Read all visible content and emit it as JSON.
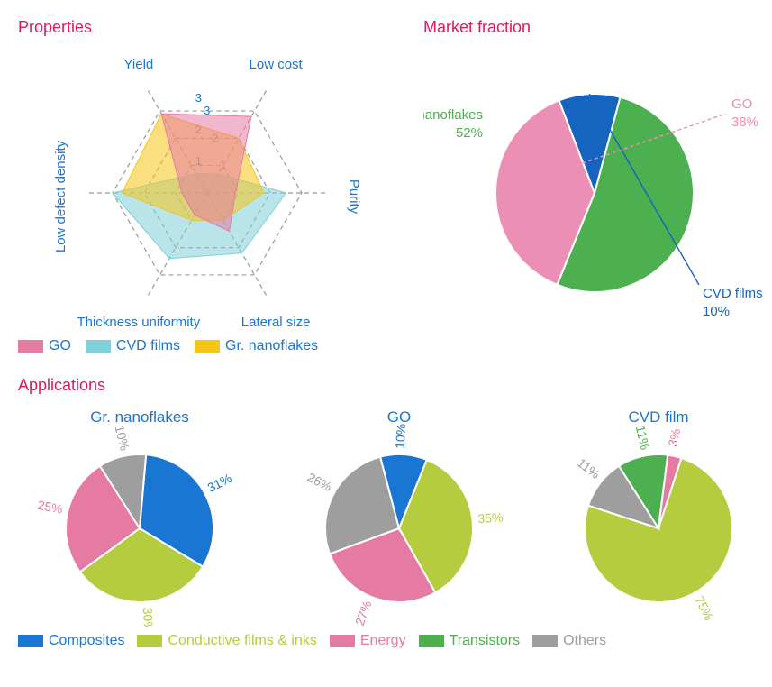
{
  "colors": {
    "title": "#d81b60",
    "axis_text": "#1976d2",
    "grid": "#999999",
    "go": "#e57ba3",
    "go_fill": "rgba(229,123,163,0.55)",
    "cvd": "#7fd0d8",
    "cvd_fill": "rgba(127,208,216,0.55)",
    "nano": "#f5c518",
    "nano_fill": "rgba(245,197,24,0.55)",
    "composites": "#1976d2",
    "conductive": "#b5cc3e",
    "energy": "#e57ba3",
    "transistors": "#4caf50",
    "others": "#9e9e9e",
    "pie_green": "#4caf50",
    "pie_pink": "#ec8fb5",
    "pie_blue": "#1565c0"
  },
  "radar": {
    "title": "Properties",
    "axes": [
      "Yield",
      "Low cost",
      "Purity",
      "Lateral size",
      "Thickness uniformity",
      "Low defect density"
    ],
    "max": 3,
    "ticks": [
      1,
      2,
      3
    ],
    "series": [
      {
        "name": "GO",
        "color_key": "go",
        "values": [
          2.9,
          2.8,
          0.9,
          1.4,
          0.8,
          0.8
        ]
      },
      {
        "name": "CVD films",
        "color_key": "cvd",
        "values": [
          0.7,
          0.7,
          2.5,
          2.2,
          2.4,
          3.0
        ]
      },
      {
        "name": "Gr. nanoflakes",
        "color_key": "nano",
        "values": [
          2.9,
          2.0,
          1.8,
          1.0,
          1.0,
          2.7
        ]
      }
    ],
    "legend": [
      {
        "label": "GO",
        "color_key": "go"
      },
      {
        "label": "CVD films",
        "color_key": "cvd"
      },
      {
        "label": "Gr. nanoflakes",
        "color_key": "nano"
      }
    ]
  },
  "market": {
    "title": "Market fraction",
    "slices": [
      {
        "label": "Gr. nanoflakes",
        "value": 52,
        "text": "52%",
        "color_key": "pie_green",
        "label_color": "#4caf50",
        "label_pos": "left"
      },
      {
        "label": "GO",
        "value": 38,
        "text": "38%",
        "color_key": "pie_pink",
        "label_color": "#ec8fb5",
        "label_pos": "right",
        "dashed_pointer": true
      },
      {
        "label": "CVD films",
        "value": 10,
        "text": "10%",
        "color_key": "pie_blue",
        "label_color": "#1565c0",
        "label_pos": "bottom"
      }
    ],
    "start_angle": -75,
    "radius": 110
  },
  "applications": {
    "title": "Applications",
    "pies": [
      {
        "name": "Gr. nanoflakes",
        "start_angle": -85,
        "slices": [
          {
            "label": "Composites",
            "value": 31,
            "text": "31%",
            "color_key": "composites"
          },
          {
            "label": "Conductive films & inks",
            "value": 30,
            "text": "30%",
            "color_key": "conductive"
          },
          {
            "label": "Energy",
            "value": 25,
            "text": "25%",
            "color_key": "energy"
          },
          {
            "label": "Others",
            "value": 10,
            "text": "10%",
            "color_key": "others"
          }
        ]
      },
      {
        "name": "GO",
        "start_angle": -68,
        "slices": [
          {
            "label": "Conductive films & inks",
            "value": 35,
            "text": "35%",
            "color_key": "conductive"
          },
          {
            "label": "Energy",
            "value": 27,
            "text": "27%",
            "color_key": "energy"
          },
          {
            "label": "Others",
            "value": 26,
            "text": "26%",
            "color_key": "others"
          },
          {
            "label": "Composites",
            "value": 10,
            "text": "10%",
            "color_key": "composites"
          }
        ]
      },
      {
        "name": "CVD film",
        "start_angle": -72,
        "slices": [
          {
            "label": "Conductive films & inks",
            "value": 75,
            "text": "75%",
            "color_key": "conductive"
          },
          {
            "label": "Others",
            "value": 11,
            "text": "11%",
            "color_key": "others"
          },
          {
            "label": "Transistors",
            "value": 11,
            "text": "11%",
            "color_key": "transistors"
          },
          {
            "label": "Energy",
            "value": 3,
            "text": "3%",
            "color_key": "energy"
          }
        ]
      }
    ],
    "legend": [
      {
        "label": "Composites",
        "color_key": "composites"
      },
      {
        "label": "Conductive films & inks",
        "color_key": "conductive"
      },
      {
        "label": "Energy",
        "color_key": "energy"
      },
      {
        "label": "Transistors",
        "color_key": "transistors"
      },
      {
        "label": "Others",
        "color_key": "others"
      }
    ],
    "radius": 82
  }
}
